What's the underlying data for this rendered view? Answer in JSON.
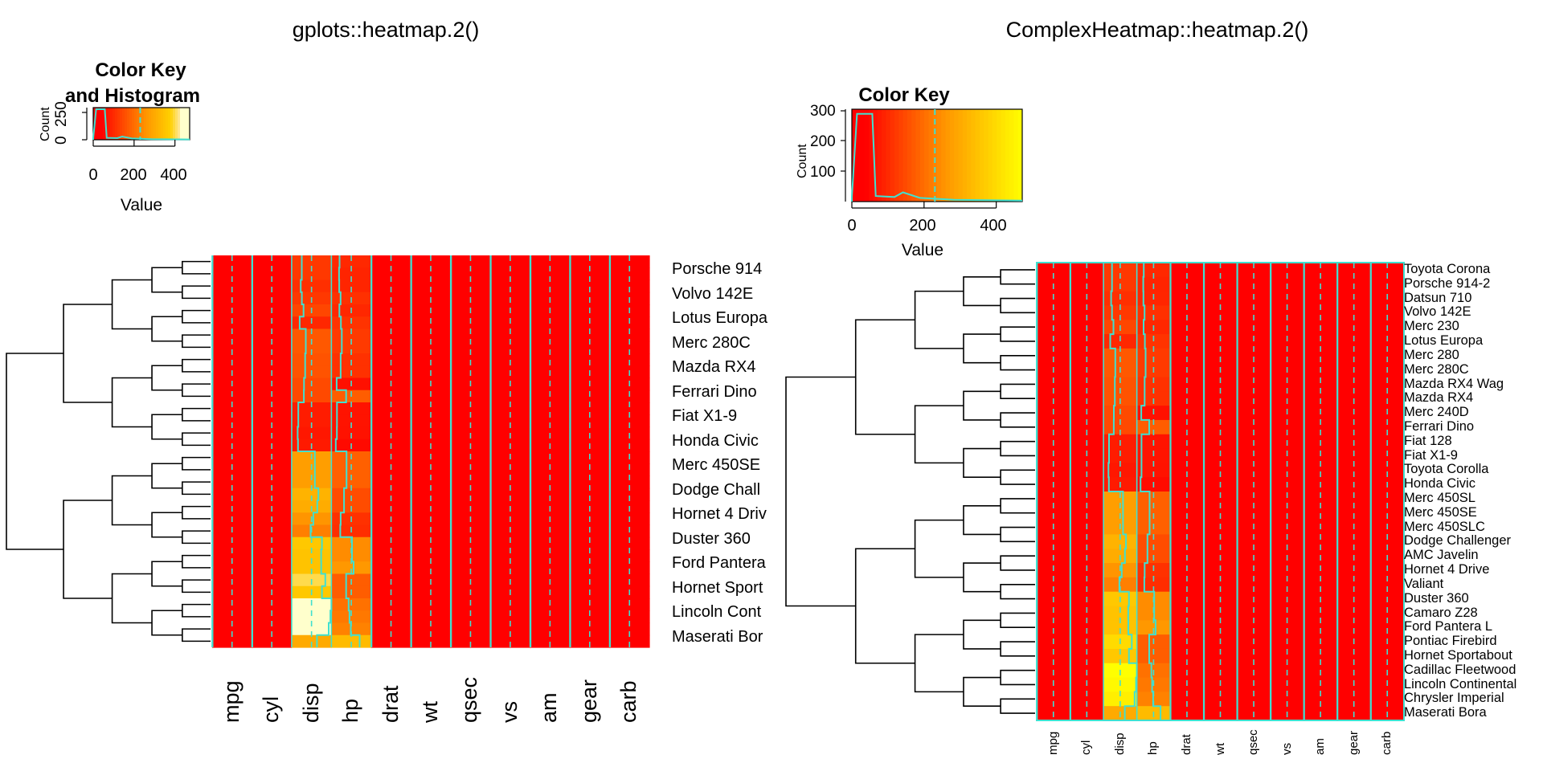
{
  "chart_data": [
    {
      "type": "heatmap",
      "title": "gplots::heatmap.2()",
      "key_title": "Color Key",
      "key_title_line2": "and Histogram",
      "key_xlabel": "Value",
      "key_ylabel": "Count",
      "key_xticks": [
        "0",
        "200",
        "400"
      ],
      "key_yticks": [
        "0",
        "250"
      ],
      "key_xrange": [
        0,
        472
      ],
      "colors": [
        "#FF0000",
        "#FF8000",
        "#FFFF00",
        "#FFFFCC"
      ],
      "trace_color": "#40E0D0",
      "columns": [
        "mpg",
        "cyl",
        "disp",
        "hp",
        "drat",
        "wt",
        "qsec",
        "vs",
        "am",
        "gear",
        "carb"
      ],
      "row_labels": [
        "Porsche 914",
        "Volvo 142E",
        "Lotus Europa",
        "Merc 280C",
        "Mazda RX4",
        "Ferrari Dino",
        "Fiat X1-9",
        "Honda Civic",
        "Merc 450SE",
        "Dodge Chall",
        "Hornet 4 Driv",
        "Duster 360",
        "Ford Pantera",
        "Hornet Sport",
        "Lincoln Cont",
        "Maserati Bor"
      ],
      "rows": [
        {
          "name": "Toyota Corona",
          "disp": 120.1,
          "hp": 97
        },
        {
          "name": "Porsche 914-2",
          "disp": 120.3,
          "hp": 91
        },
        {
          "name": "Datsun 710",
          "disp": 108,
          "hp": 93
        },
        {
          "name": "Volvo 142E",
          "disp": 121,
          "hp": 109
        },
        {
          "name": "Merc 230",
          "disp": 140.8,
          "hp": 95
        },
        {
          "name": "Lotus Europa",
          "disp": 95.1,
          "hp": 113
        },
        {
          "name": "Merc 280",
          "disp": 167.6,
          "hp": 123
        },
        {
          "name": "Merc 280C",
          "disp": 167.6,
          "hp": 123
        },
        {
          "name": "Mazda RX4 Wag",
          "disp": 160,
          "hp": 110
        },
        {
          "name": "Mazda RX4",
          "disp": 160,
          "hp": 110
        },
        {
          "name": "Merc 240D",
          "disp": 146.7,
          "hp": 62
        },
        {
          "name": "Ferrari Dino",
          "disp": 145,
          "hp": 175
        },
        {
          "name": "Fiat 128",
          "disp": 78.7,
          "hp": 66
        },
        {
          "name": "Fiat X1-9",
          "disp": 79,
          "hp": 66
        },
        {
          "name": "Toyota Corolla",
          "disp": 71.1,
          "hp": 65
        },
        {
          "name": "Honda Civic",
          "disp": 75.7,
          "hp": 52
        },
        {
          "name": "Merc 450SL",
          "disp": 275.8,
          "hp": 180
        },
        {
          "name": "Merc 450SE",
          "disp": 275.8,
          "hp": 180
        },
        {
          "name": "Merc 450SLC",
          "disp": 275.8,
          "hp": 180
        },
        {
          "name": "Dodge Challenger",
          "disp": 318,
          "hp": 150
        },
        {
          "name": "AMC Javelin",
          "disp": 304,
          "hp": 150
        },
        {
          "name": "Hornet 4 Drive",
          "disp": 258,
          "hp": 110
        },
        {
          "name": "Valiant",
          "disp": 225,
          "hp": 105
        },
        {
          "name": "Duster 360",
          "disp": 360,
          "hp": 245
        },
        {
          "name": "Camaro Z28",
          "disp": 350,
          "hp": 245
        },
        {
          "name": "Ford Pantera L",
          "disp": 351,
          "hp": 264
        },
        {
          "name": "Pontiac Firebird",
          "disp": 400,
          "hp": 175
        },
        {
          "name": "Hornet Sportabout",
          "disp": 360,
          "hp": 175
        },
        {
          "name": "Cadillac Fleetwood",
          "disp": 472,
          "hp": 205
        },
        {
          "name": "Lincoln Continental",
          "disp": 460,
          "hp": 215
        },
        {
          "name": "Chrysler Imperial",
          "disp": 440,
          "hp": 230
        },
        {
          "name": "Maserati Bora",
          "disp": 301,
          "hp": 335
        }
      ]
    },
    {
      "type": "heatmap",
      "title": "ComplexHeatmap::heatmap.2()",
      "key_title": "Color Key",
      "key_xlabel": "Value",
      "key_ylabel": "Count",
      "key_xticks": [
        "0",
        "200",
        "400"
      ],
      "key_yticks": [
        "100",
        "200",
        "300"
      ],
      "key_xrange": [
        0,
        472
      ],
      "colors": [
        "#FF0000",
        "#FF8000",
        "#FFFF00"
      ],
      "trace_color": "#40E0D0",
      "columns": [
        "mpg",
        "cyl",
        "disp",
        "hp",
        "drat",
        "wt",
        "qsec",
        "vs",
        "am",
        "gear",
        "carb"
      ],
      "row_labels": [
        "Toyota Corona",
        "Porsche 914-2",
        "Datsun 710",
        "Volvo 142E",
        "Merc 230",
        "Lotus Europa",
        "Merc 280",
        "Merc 280C",
        "Mazda RX4 Wag",
        "Mazda RX4",
        "Merc 240D",
        "Ferrari Dino",
        "Fiat 128",
        "Fiat X1-9",
        "Toyota Corolla",
        "Honda Civic",
        "Merc 450SL",
        "Merc 450SE",
        "Merc 450SLC",
        "Dodge Challenger",
        "AMC Javelin",
        "Hornet 4 Drive",
        "Valiant",
        "Duster 360",
        "Camaro Z28",
        "Ford Pantera L",
        "Pontiac Firebird",
        "Hornet Sportabout",
        "Cadillac Fleetwood",
        "Lincoln Continental",
        "Chrysler Imperial",
        "Maserati Bora"
      ]
    }
  ]
}
